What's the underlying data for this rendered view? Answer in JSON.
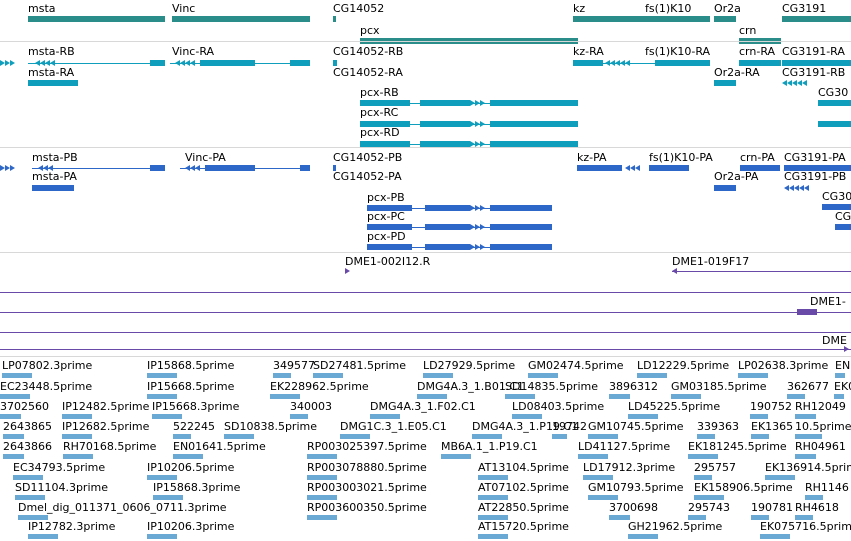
{
  "colors": {
    "gene": "#2a8d8a",
    "mrna_rb": "#0f9fbd",
    "mrna_pb": "#2d68c8",
    "clone": "#6a4aa8",
    "est": "#6aa9d4",
    "separator": "#d8d8d8"
  },
  "tracks": {
    "genes": [
      "msta",
      "Vinc",
      "CG14052",
      "pcx",
      "kz",
      "fs(1)K10",
      "Or2a",
      "crn",
      "CG3191"
    ],
    "transcripts_r": [
      "msta-RB",
      "msta-RA",
      "Vinc-RA",
      "CG14052-RB",
      "CG14052-RA",
      "pcx-RB",
      "pcx-RC",
      "pcx-RD",
      "kz-RA",
      "fs(1)K10-RA",
      "crn-RA",
      "Or2a-RA",
      "CG3191-RA",
      "CG3191-RB",
      "CG30"
    ],
    "transcripts_p": [
      "msta-PB",
      "msta-PA",
      "Vinc-PA",
      "CG14052-PB",
      "CG14052-PA",
      "pcx-PB",
      "pcx-PC",
      "pcx-PD",
      "kz-PA",
      "fs(1)K10-PA",
      "crn-PA",
      "Or2a-PA",
      "CG3191-PA",
      "CG3191-PB",
      "CG30",
      "CG"
    ],
    "clones": [
      "DME1-002I12.R",
      "DME1-019F17",
      "DME1-",
      "DME"
    ],
    "ests": [
      "LP07802.3prime",
      "IP15868.5prime",
      "349577",
      "SD27481.5prime",
      "LD27929.5prime",
      "GM02474.5prime",
      "LD12229.5prime",
      "LP02638.3prime",
      "EN",
      "EC23448.5prime",
      "IP15668.5prime",
      "EK228962.5prime",
      "DMG4A.3_1.B01.C1",
      "SD14835.5prime",
      "3896312",
      "GM03185.5prime",
      "362677",
      "EK0",
      "3702560",
      "IP12482.5prime",
      "IP15668.3prime",
      "340003",
      "DMG4A.3_1.F02.C1",
      "LD08403.5prime",
      "LD45225.5prime",
      "190752",
      "RH12049",
      "2643865",
      "IP12682.5prime",
      "522245",
      "SD10838.5prime",
      "DMG1C.3_1.E05.C1",
      "DMG4A.3_1.P19.C1",
      "19742",
      "GM10745.5prime",
      "339363",
      "EK1365",
      "10.5prime",
      "2643866",
      "RH70168.5prime",
      "EN01641.5prime",
      "RP003025397.5prime",
      "MB6A.1_1.P19.C1",
      "EK181245.5prime",
      "RH04961",
      "EC34793.5prime",
      "IP10206.5prime",
      "RP003078880.5prime",
      "AT13104.5prime",
      "LD17912.3prime",
      "295757",
      "EK136914.5prime",
      "SD11104.3prime",
      "IP15868.3prime",
      "RP003003021.5prime",
      "AT07102.5prime",
      "GM10793.5prime",
      "EK158906.5prime",
      "RH1146",
      "Dmel_dig_011371_0606_0711.3prime",
      "RP003600350.5prime",
      "AT22850.5prime",
      "3700698",
      "295743",
      "190781",
      "RH4618",
      "IP12782.3prime",
      "IP10206.3prime",
      "AT15720.5prime",
      "GH21962.5prime",
      "EK075716.5prime",
      "LD41127.5prime",
      "EK181245.5prime"
    ]
  }
}
